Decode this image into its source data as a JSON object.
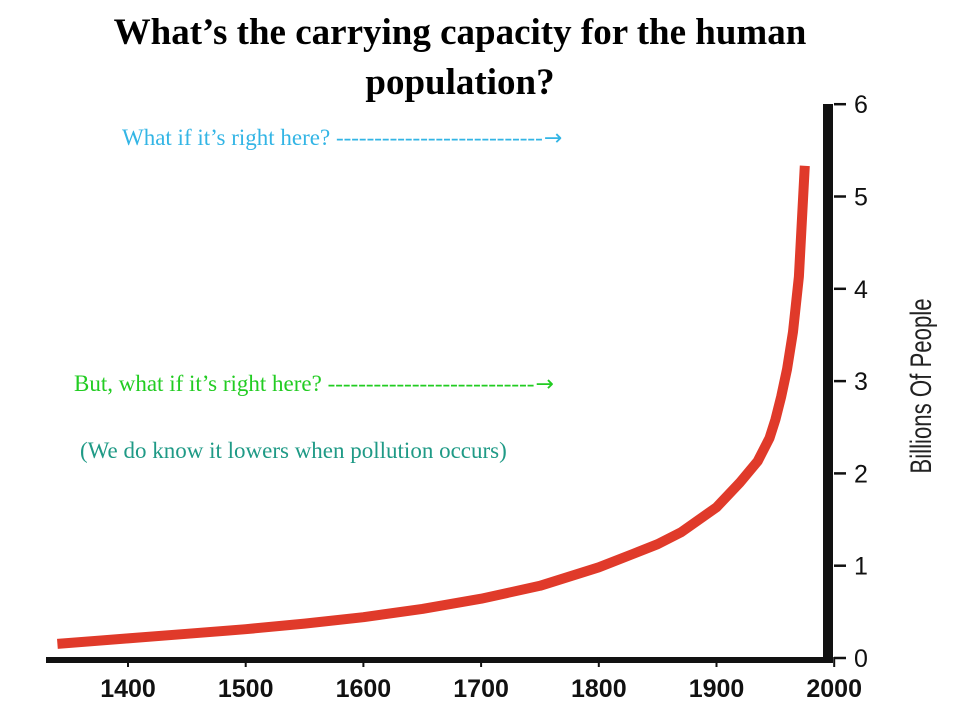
{
  "title": {
    "line1": "What’s the carrying capacity for the human",
    "line2": "population?"
  },
  "callouts": [
    {
      "text": "What if it’s right here? ---------------------------",
      "arrow": "→",
      "color": "#33b5e5"
    },
    {
      "text": "But, what if it’s right here? ---------------------------",
      "arrow": "→",
      "color": "#22cc22"
    }
  ],
  "note": "(We do know it lowers when pollution occurs)",
  "chart_data": {
    "type": "line",
    "title": "",
    "xlabel": "",
    "ylabel": "Billions Of People",
    "xlim": [
      1350,
      2000
    ],
    "ylim": [
      0,
      6
    ],
    "x_ticks": [
      "1400",
      "1500",
      "1600",
      "1700",
      "1800",
      "1900",
      "2000"
    ],
    "y_ticks": [
      "0",
      "1",
      "2",
      "3",
      "4",
      "5",
      "6"
    ],
    "line_color": "#e03a2a",
    "series": [
      {
        "x": [
          1340,
          1400,
          1450,
          1500,
          1550,
          1600,
          1650,
          1700,
          1750,
          1800,
          1830,
          1850,
          1870,
          1900,
          1920,
          1935,
          1945,
          1950,
          1955,
          1960,
          1965,
          1970,
          1975
        ],
        "y": [
          0.12,
          0.18,
          0.23,
          0.28,
          0.34,
          0.41,
          0.5,
          0.61,
          0.75,
          0.95,
          1.1,
          1.2,
          1.33,
          1.6,
          1.87,
          2.1,
          2.35,
          2.55,
          2.8,
          3.1,
          3.5,
          4.1,
          5.3
        ]
      }
    ]
  }
}
